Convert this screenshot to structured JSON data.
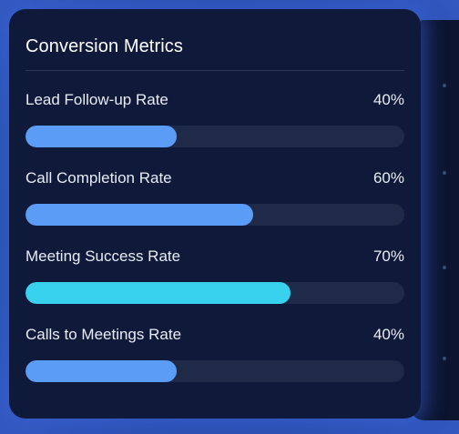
{
  "card": {
    "title": "Conversion Metrics"
  },
  "metrics": [
    {
      "label": "Lead Follow-up Rate",
      "value_text": "40%",
      "progress": 0.4,
      "color": "#5b9cf6"
    },
    {
      "label": "Call Completion Rate",
      "value_text": "60%",
      "progress": 0.6,
      "color": "#5b9cf6"
    },
    {
      "label": "Meeting Success Rate",
      "value_text": "70%",
      "progress": 0.7,
      "color": "#38d2ee"
    },
    {
      "label": "Calls to Meetings Rate",
      "value_text": "40%",
      "progress": 0.4,
      "color": "#5b9cf6"
    }
  ]
}
